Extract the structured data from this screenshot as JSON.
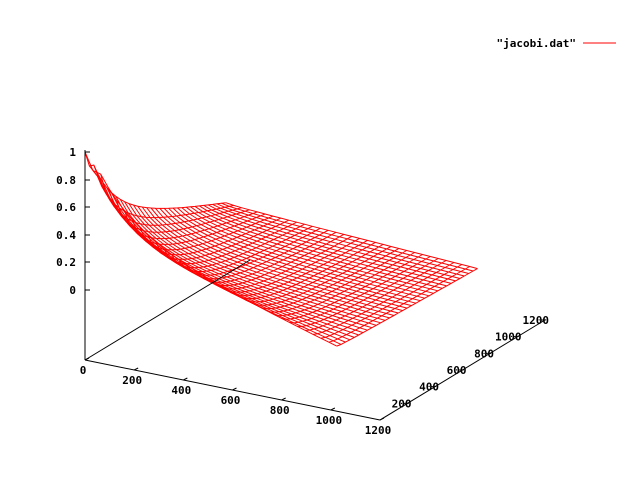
{
  "chart_data": {
    "type": "surface",
    "title": "",
    "grid": false,
    "legend": {
      "position": "top-right",
      "entries": [
        {
          "label": "\"jacobi.dat\"",
          "color": "#ff0000"
        }
      ]
    },
    "x_axis": {
      "range": [
        0,
        1200
      ],
      "ticks": [
        "0",
        "200",
        "400",
        "600",
        "800",
        "1000",
        "1200"
      ]
    },
    "y_axis": {
      "range": [
        0,
        1200
      ],
      "ticks": [
        "200",
        "400",
        "600",
        "800",
        "1000",
        "1200"
      ]
    },
    "z_axis": {
      "range": [
        0,
        1
      ],
      "ticks": [
        "0",
        "0.2",
        "0.4",
        "0.6",
        "0.8",
        "1"
      ]
    },
    "surface": {
      "description": "Jacobi iteration result on a square grid: value 1 at the origin corner, decaying to ~0 away from it",
      "x_extent": [
        0,
        1024
      ],
      "y_extent": [
        0,
        1024
      ],
      "grid_size": 33,
      "corner_values": {
        "origin": 1.0,
        "far_corner": 0.0
      },
      "color": "#ff0000"
    }
  }
}
